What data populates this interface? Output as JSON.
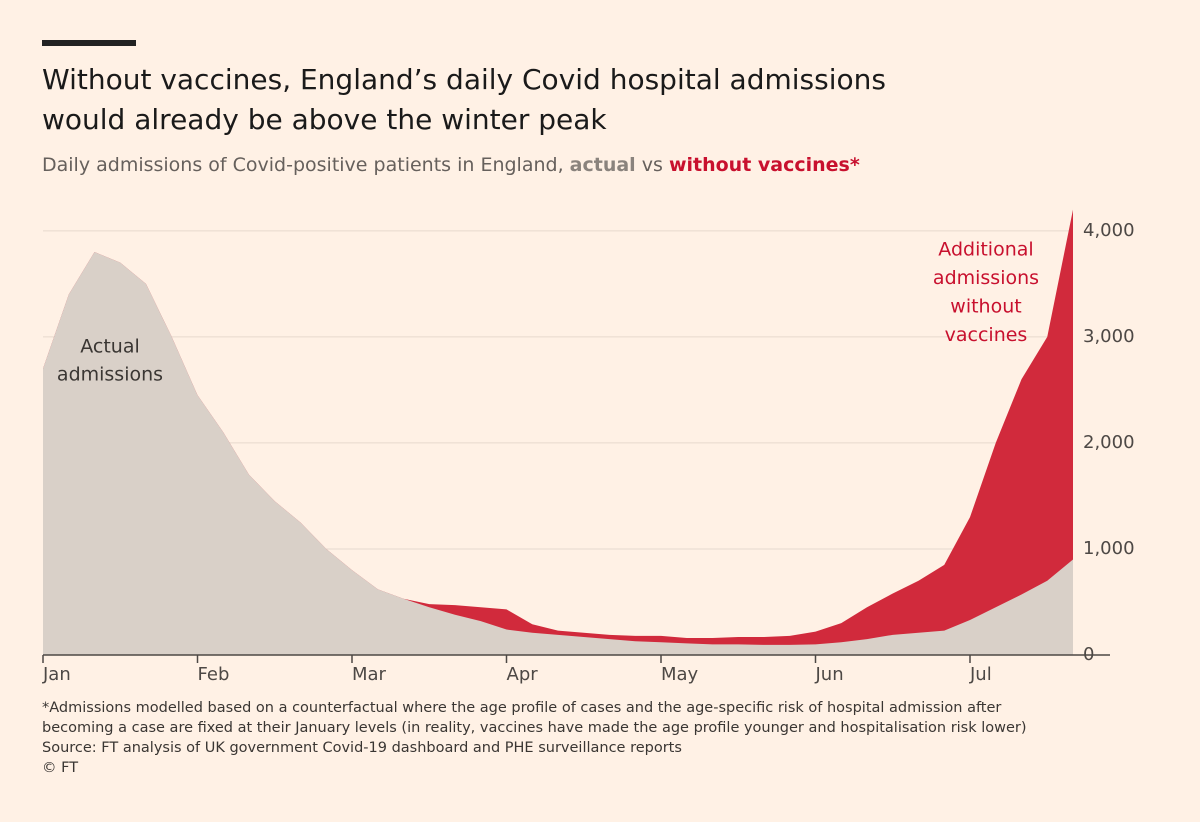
{
  "chart_data": {
    "type": "area",
    "title": [
      "Without vaccines, England’s daily Covid hospital admissions",
      "would already be above the winter peak"
    ],
    "subtitle": "Daily admissions of Covid-positive patients in England,",
    "subtitle_join": "vs",
    "categories": [
      "Jan",
      null,
      null,
      null,
      null,
      null,
      "Feb",
      null,
      null,
      null,
      null,
      null,
      "Mar",
      null,
      null,
      null,
      null,
      null,
      "Apr",
      null,
      null,
      null,
      null,
      null,
      "May",
      null,
      null,
      null,
      null,
      null,
      "Jun",
      null,
      null,
      null,
      null,
      null,
      "Jul",
      null,
      null,
      null,
      null
    ],
    "series": [
      {
        "name": "actual",
        "color": "#d9d0c8",
        "values": [
          2700,
          3400,
          3800,
          3700,
          3500,
          3000,
          2450,
          2100,
          1700,
          1450,
          1250,
          1000,
          800,
          620,
          530,
          450,
          380,
          320,
          240,
          210,
          190,
          170,
          150,
          130,
          120,
          110,
          100,
          100,
          95,
          95,
          100,
          120,
          150,
          190,
          210,
          230,
          330,
          450,
          570,
          700,
          900
        ]
      },
      {
        "name": "without vaccines*",
        "color": "#d12a3c",
        "values": [
          2700,
          3400,
          3800,
          3700,
          3500,
          3000,
          2450,
          2100,
          1700,
          1450,
          1250,
          1000,
          800,
          620,
          530,
          480,
          470,
          450,
          430,
          290,
          230,
          210,
          190,
          180,
          180,
          160,
          160,
          170,
          170,
          180,
          220,
          300,
          450,
          580,
          700,
          850,
          1300,
          2000,
          2600,
          3000,
          4200
        ]
      }
    ],
    "ylim": [
      0,
      4300
    ],
    "yticks": [
      0,
      {
        "value": 1000,
        "label": "1,000"
      },
      {
        "value": 2000,
        "label": "2,000"
      },
      {
        "value": 3000,
        "label": "3,000"
      },
      {
        "value": 4000,
        "label": "4,000"
      }
    ],
    "grid": true,
    "annotations": {
      "actual": [
        "Actual",
        "admissions"
      ],
      "additional": [
        "Additional",
        "admissions",
        "without",
        "vaccines"
      ]
    },
    "footnote": [
      "*Admissions modelled based on a counterfactual where the age profile of cases and the age-specific risk of hospital admission after",
      "becoming a case are fixed at their January levels (in reality, vaccines have made the age profile younger and hospitalisation risk lower)",
      "Source: FT analysis of UK government Covid-19 dashboard and PHE surveillance reports",
      "© FT"
    ]
  }
}
